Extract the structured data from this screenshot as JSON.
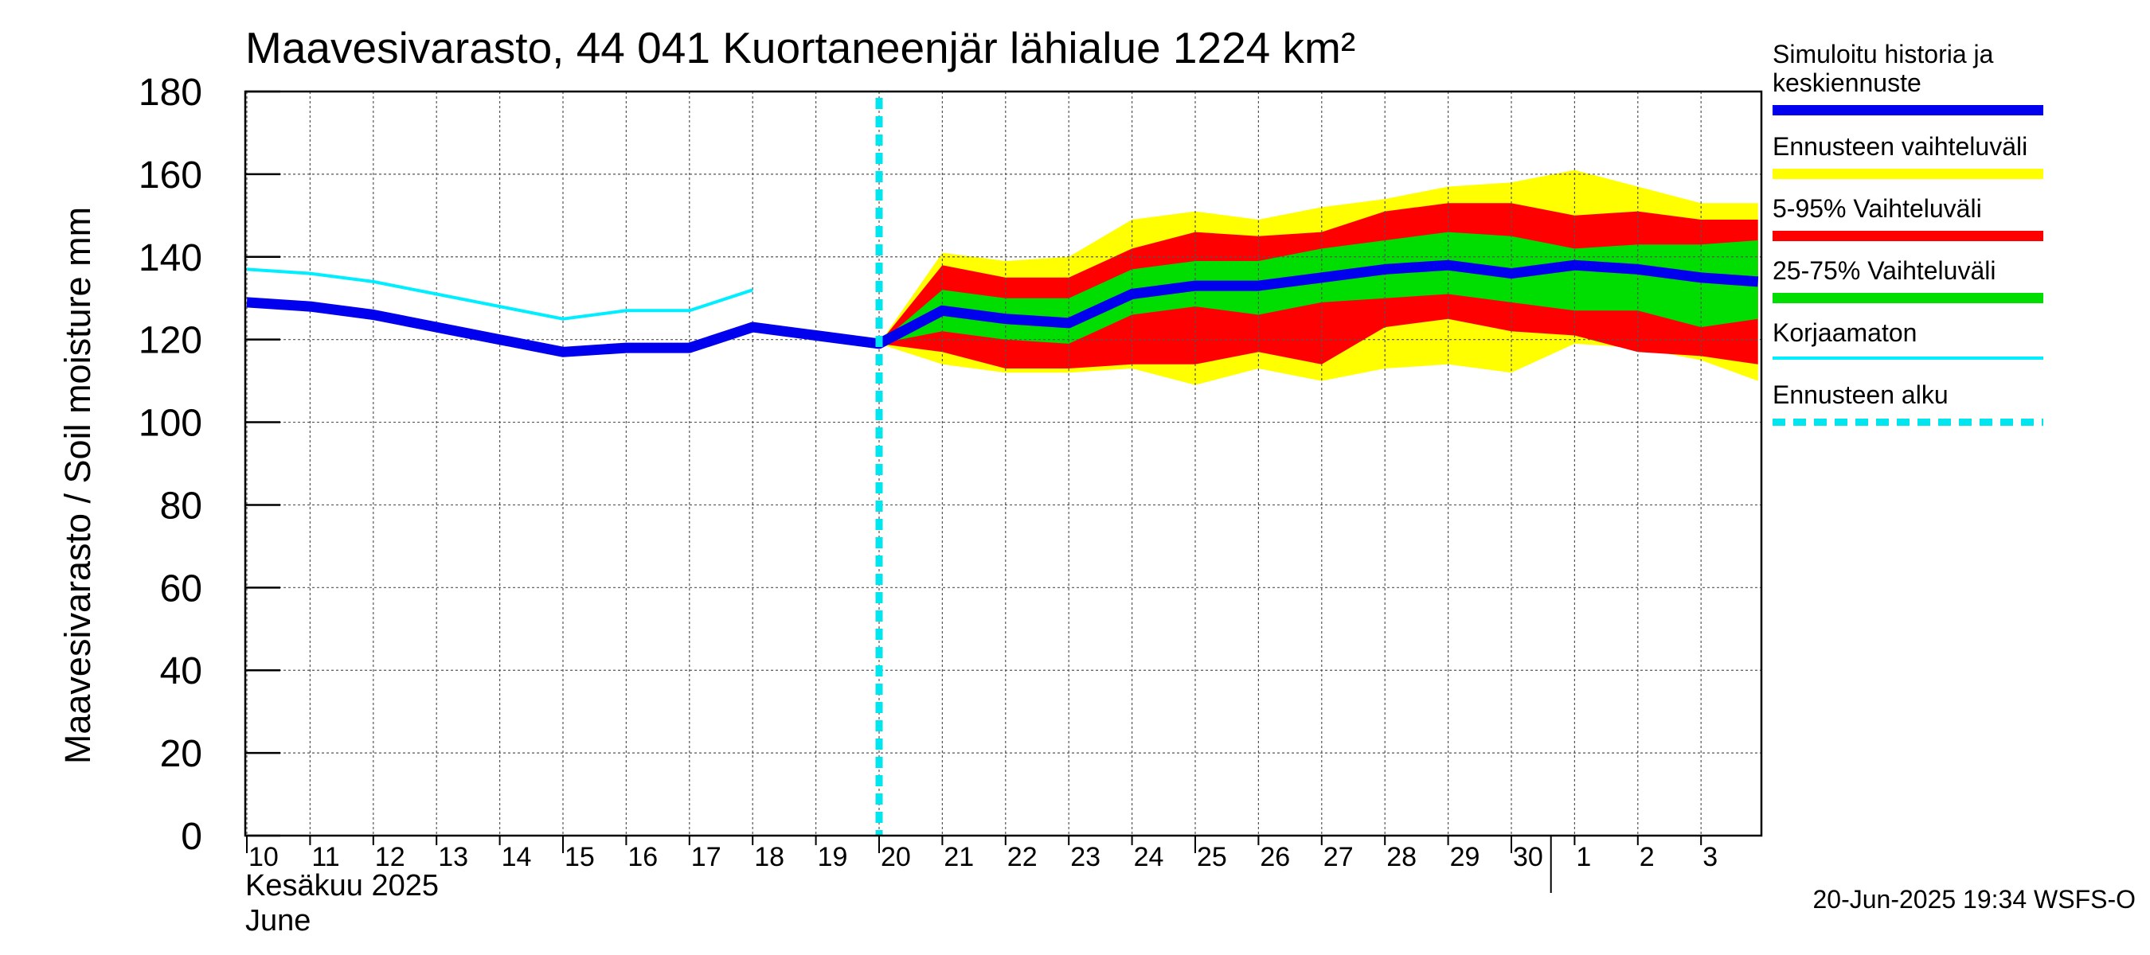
{
  "chart_data": {
    "type": "area",
    "title": "Maavesivarasto, 44 041 Kuortaneenjär lähialue 1224 km²",
    "ylabel": "Maavesivarasto / Soil moisture   mm",
    "ylim": [
      0,
      180
    ],
    "yticks": [
      "0",
      "20",
      "40",
      "60",
      "80",
      "100",
      "120",
      "140",
      "160",
      "180"
    ],
    "x_ticks": [
      "10",
      "11",
      "12",
      "13",
      "14",
      "15",
      "16",
      "17",
      "18",
      "19",
      "20",
      "21",
      "22",
      "23",
      "24",
      "25",
      "26",
      "27",
      "28",
      "29",
      "30",
      "1",
      "2",
      "3"
    ],
    "month_label_fi": "Kesäkuu   2025",
    "month_label_en": "June",
    "grid": true,
    "legend_position": "right",
    "forecast_start": "20",
    "colors": {
      "history": "#0000ee",
      "range": "#ffff00",
      "p5_95": "#ff0000",
      "p25_75": "#00dd00",
      "uncorrected": "#00eeff",
      "forecast_start": "#00e5ee"
    },
    "series": [
      {
        "name": "Simuloitu historia ja keskiennuste",
        "x": [
          "10",
          "11",
          "12",
          "13",
          "14",
          "15",
          "16",
          "17",
          "18",
          "19",
          "20",
          "21",
          "22",
          "23",
          "24",
          "25",
          "26",
          "27",
          "28",
          "29",
          "30",
          "1",
          "2",
          "3",
          "3.9"
        ],
        "values": [
          129,
          128,
          126,
          123,
          120,
          117,
          118,
          118,
          123,
          121,
          119,
          127,
          125,
          124,
          131,
          133,
          133,
          135,
          137,
          138,
          136,
          138,
          137,
          135,
          134
        ]
      },
      {
        "name": "Korjaamaton",
        "x": [
          "10",
          "11",
          "12",
          "13",
          "14",
          "15",
          "16",
          "17",
          "18"
        ],
        "values": [
          137,
          136,
          134,
          131,
          128,
          125,
          127,
          127,
          132
        ]
      }
    ],
    "bands": [
      {
        "name": "Ennusteen vaihteluväli",
        "x": [
          "20",
          "21",
          "22",
          "23",
          "24",
          "25",
          "26",
          "27",
          "28",
          "29",
          "30",
          "1",
          "2",
          "3",
          "3.9"
        ],
        "low": [
          119,
          114,
          112,
          112,
          113,
          109,
          113,
          110,
          113,
          114,
          112,
          119,
          118,
          115,
          110
        ],
        "high": [
          119,
          141,
          139,
          140,
          149,
          151,
          149,
          152,
          154,
          157,
          158,
          161,
          157,
          153,
          153
        ]
      },
      {
        "name": "5-95% Vaihteluväli",
        "x": [
          "20",
          "21",
          "22",
          "23",
          "24",
          "25",
          "26",
          "27",
          "28",
          "29",
          "30",
          "1",
          "2",
          "3",
          "3.9"
        ],
        "low": [
          119,
          117,
          113,
          113,
          114,
          114,
          117,
          114,
          123,
          125,
          122,
          121,
          117,
          116,
          114
        ],
        "high": [
          119,
          138,
          135,
          135,
          142,
          146,
          145,
          146,
          151,
          153,
          153,
          150,
          151,
          149,
          149
        ]
      },
      {
        "name": "25-75% Vaihteluväli",
        "x": [
          "20",
          "21",
          "22",
          "23",
          "24",
          "25",
          "26",
          "27",
          "28",
          "29",
          "30",
          "1",
          "2",
          "3",
          "3.9"
        ],
        "low": [
          119,
          122,
          120,
          119,
          126,
          128,
          126,
          129,
          130,
          131,
          129,
          127,
          127,
          123,
          125
        ],
        "high": [
          119,
          132,
          130,
          130,
          137,
          139,
          139,
          142,
          144,
          146,
          145,
          142,
          143,
          143,
          144
        ]
      }
    ],
    "legend": [
      {
        "label": "Simuloitu historia ja keskiennuste",
        "color": "#0000ee",
        "style": "thick"
      },
      {
        "label": "Ennusteen vaihteluväli",
        "color": "#ffff00",
        "style": "thick"
      },
      {
        "label": "5-95% Vaihteluväli",
        "color": "#ff0000",
        "style": "thick"
      },
      {
        "label": "25-75% Vaihteluväli",
        "color": "#00dd00",
        "style": "thick"
      },
      {
        "label": "Korjaamaton",
        "color": "#00eeff",
        "style": "thin"
      },
      {
        "label": "Ennusteen alku",
        "color": "#00e5ee",
        "style": "dashed"
      }
    ],
    "footer": "20-Jun-2025 19:34 WSFS-O"
  }
}
